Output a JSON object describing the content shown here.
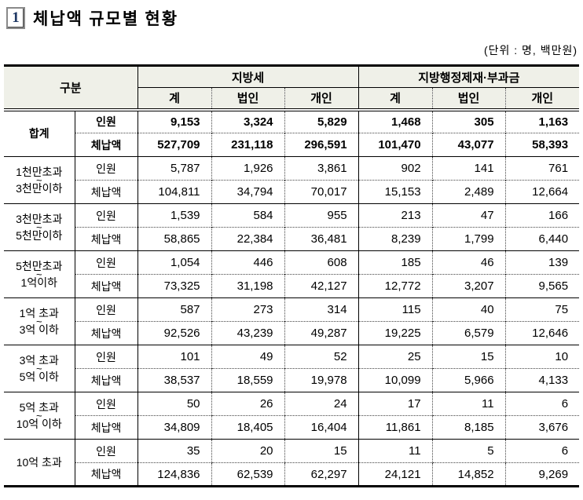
{
  "title": {
    "number": "1",
    "text": "체납액 규모별 현황"
  },
  "unit_note": "(단위 : 명, 백만원)",
  "colors": {
    "header_bg": "#eff0e8",
    "border": "#000000",
    "title_number": "#1f3864"
  },
  "table": {
    "corner_header": "구분",
    "groups": [
      {
        "label": "지방세",
        "columns": [
          "계",
          "법인",
          "개인"
        ]
      },
      {
        "label": "지방행정제재·부과금",
        "columns": [
          "계",
          "법인",
          "개인"
        ]
      }
    ],
    "rows": [
      {
        "label_lines": [
          "합계"
        ],
        "tilde": false,
        "bold": true,
        "metrics": [
          {
            "label": "인원",
            "values": [
              "9,153",
              "3,324",
              "5,829",
              "1,468",
              "305",
              "1,163"
            ]
          },
          {
            "label": "체납액",
            "values": [
              "527,709",
              "231,118",
              "296,591",
              "101,470",
              "43,077",
              "58,393"
            ]
          }
        ]
      },
      {
        "label_lines": [
          "1천만초과",
          "3천만이하"
        ],
        "tilde": true,
        "bold": false,
        "metrics": [
          {
            "label": "인원",
            "values": [
              "5,787",
              "1,926",
              "3,861",
              "902",
              "141",
              "761"
            ]
          },
          {
            "label": "체납액",
            "values": [
              "104,811",
              "34,794",
              "70,017",
              "15,153",
              "2,489",
              "12,664"
            ]
          }
        ]
      },
      {
        "label_lines": [
          "3천만초과",
          "5천만이하"
        ],
        "tilde": true,
        "bold": false,
        "metrics": [
          {
            "label": "인원",
            "values": [
              "1,539",
              "584",
              "955",
              "213",
              "47",
              "166"
            ]
          },
          {
            "label": "체납액",
            "values": [
              "58,865",
              "22,384",
              "36,481",
              "8,239",
              "1,799",
              "6,440"
            ]
          }
        ]
      },
      {
        "label_lines": [
          "5천만초과",
          "1억이하"
        ],
        "tilde": true,
        "bold": false,
        "metrics": [
          {
            "label": "인원",
            "values": [
              "1,054",
              "446",
              "608",
              "185",
              "46",
              "139"
            ]
          },
          {
            "label": "체납액",
            "values": [
              "73,325",
              "31,198",
              "42,127",
              "12,772",
              "3,207",
              "9,565"
            ]
          }
        ]
      },
      {
        "label_lines": [
          "1억 초과",
          "3억 이하"
        ],
        "tilde": true,
        "bold": false,
        "metrics": [
          {
            "label": "인원",
            "values": [
              "587",
              "273",
              "314",
              "115",
              "40",
              "75"
            ]
          },
          {
            "label": "체납액",
            "values": [
              "92,526",
              "43,239",
              "49,287",
              "19,225",
              "6,579",
              "12,646"
            ]
          }
        ]
      },
      {
        "label_lines": [
          "3억 초과",
          "5억 이하"
        ],
        "tilde": true,
        "bold": false,
        "metrics": [
          {
            "label": "인원",
            "values": [
              "101",
              "49",
              "52",
              "25",
              "15",
              "10"
            ]
          },
          {
            "label": "체납액",
            "values": [
              "38,537",
              "18,559",
              "19,978",
              "10,099",
              "5,966",
              "4,133"
            ]
          }
        ]
      },
      {
        "label_lines": [
          "5억 초과",
          "10억 이하"
        ],
        "tilde": true,
        "bold": false,
        "metrics": [
          {
            "label": "인원",
            "values": [
              "50",
              "26",
              "24",
              "17",
              "11",
              "6"
            ]
          },
          {
            "label": "체납액",
            "values": [
              "34,809",
              "18,405",
              "16,404",
              "11,861",
              "8,185",
              "3,676"
            ]
          }
        ]
      },
      {
        "label_lines": [
          "10억 초과"
        ],
        "tilde": false,
        "bold": false,
        "metrics": [
          {
            "label": "인원",
            "values": [
              "35",
              "20",
              "15",
              "11",
              "5",
              "6"
            ]
          },
          {
            "label": "체납액",
            "values": [
              "124,836",
              "62,539",
              "62,297",
              "24,121",
              "14,852",
              "9,269"
            ]
          }
        ]
      }
    ]
  }
}
